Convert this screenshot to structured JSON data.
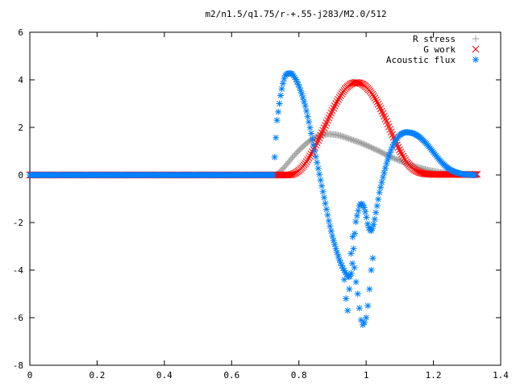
{
  "chart_data": {
    "type": "scatter",
    "title": "m2/n1.5/q1.75/r-+.55-j283/M2.0/512",
    "xlabel": "",
    "ylabel": "",
    "xlim": [
      0,
      1.4
    ],
    "ylim": [
      -8,
      6
    ],
    "x_ticks": [
      "0",
      "0.2",
      "0.4",
      "0.6",
      "0.8",
      "1",
      "1.2",
      "1.4"
    ],
    "y_ticks": [
      "-8",
      "-6",
      "-4",
      "-2",
      "0",
      "2",
      "4",
      "6"
    ],
    "grid": false,
    "legend_position": "top-right",
    "series": [
      {
        "name": "R stress",
        "marker": "plus",
        "color": "#a0a0a0",
        "x": [
          0.0,
          0.05,
          0.1,
          0.15,
          0.2,
          0.25,
          0.3,
          0.35,
          0.4,
          0.45,
          0.5,
          0.55,
          0.6,
          0.65,
          0.7,
          0.73,
          0.74,
          0.75,
          0.76,
          0.77,
          0.78,
          0.79,
          0.8,
          0.81,
          0.82,
          0.83,
          0.84,
          0.85,
          0.86,
          0.87,
          0.88,
          0.89,
          0.9,
          0.91,
          0.92,
          0.93,
          0.94,
          0.95,
          0.96,
          0.97,
          0.98,
          0.99,
          1.0,
          1.01,
          1.02,
          1.03,
          1.04,
          1.05,
          1.06,
          1.07,
          1.08,
          1.09,
          1.1,
          1.11,
          1.12,
          1.13,
          1.14,
          1.15,
          1.16,
          1.17,
          1.18,
          1.19,
          1.2,
          1.21,
          1.22,
          1.23,
          1.24,
          1.25,
          1.26,
          1.27,
          1.28,
          1.29,
          1.3,
          1.31,
          1.32,
          1.33
        ],
        "y": [
          0,
          0,
          0,
          0,
          0,
          0,
          0,
          0,
          0,
          0,
          0,
          0,
          0,
          0,
          0,
          0,
          0.08,
          0.22,
          0.38,
          0.55,
          0.72,
          0.88,
          1.03,
          1.17,
          1.3,
          1.41,
          1.51,
          1.59,
          1.65,
          1.69,
          1.71,
          1.72,
          1.71,
          1.69,
          1.66,
          1.62,
          1.57,
          1.52,
          1.47,
          1.42,
          1.37,
          1.31,
          1.25,
          1.19,
          1.12,
          1.06,
          0.99,
          0.92,
          0.85,
          0.78,
          0.72,
          0.66,
          0.6,
          0.54,
          0.48,
          0.43,
          0.38,
          0.34,
          0.3,
          0.26,
          0.22,
          0.19,
          0.16,
          0.13,
          0.11,
          0.09,
          0.07,
          0.05,
          0.04,
          0.03,
          0.02,
          0.02,
          0.01,
          0.01,
          0.0,
          0.0
        ]
      },
      {
        "name": "G work",
        "marker": "cross",
        "color": "#ff0000",
        "x": [
          0.0,
          0.05,
          0.1,
          0.15,
          0.2,
          0.25,
          0.3,
          0.35,
          0.4,
          0.45,
          0.5,
          0.55,
          0.6,
          0.65,
          0.7,
          0.73,
          0.74,
          0.75,
          0.76,
          0.77,
          0.78,
          0.79,
          0.8,
          0.81,
          0.82,
          0.83,
          0.84,
          0.85,
          0.86,
          0.87,
          0.88,
          0.89,
          0.9,
          0.91,
          0.92,
          0.93,
          0.94,
          0.95,
          0.96,
          0.97,
          0.98,
          0.99,
          1.0,
          1.01,
          1.02,
          1.03,
          1.04,
          1.05,
          1.06,
          1.07,
          1.08,
          1.09,
          1.1,
          1.11,
          1.12,
          1.13,
          1.14,
          1.15,
          1.16,
          1.17,
          1.18,
          1.19,
          1.2,
          1.21,
          1.22,
          1.23,
          1.24,
          1.25,
          1.26,
          1.27,
          1.28,
          1.29,
          1.3,
          1.31,
          1.32,
          1.33
        ],
        "y": [
          0,
          0,
          0,
          0,
          0,
          0,
          0,
          0,
          0,
          0,
          0,
          0,
          0,
          0,
          0,
          0,
          0,
          0,
          0,
          0,
          0.02,
          0.08,
          0.18,
          0.32,
          0.5,
          0.72,
          0.97,
          1.24,
          1.53,
          1.83,
          2.13,
          2.43,
          2.72,
          3.0,
          3.25,
          3.47,
          3.65,
          3.78,
          3.86,
          3.89,
          3.87,
          3.81,
          3.7,
          3.55,
          3.36,
          3.13,
          2.87,
          2.58,
          2.27,
          1.95,
          1.63,
          1.32,
          1.03,
          0.77,
          0.55,
          0.38,
          0.25,
          0.16,
          0.1,
          0.06,
          0.04,
          0.03,
          0.02,
          0.02,
          0.02,
          0.02,
          0.02,
          0.02,
          0.02,
          0.02,
          0.02,
          0.02,
          0.02,
          0.02,
          0.02,
          0.02
        ]
      },
      {
        "name": "Acoustic flux",
        "marker": "star",
        "color": "#0080ff",
        "x": [
          0.0,
          0.05,
          0.1,
          0.15,
          0.2,
          0.25,
          0.3,
          0.35,
          0.4,
          0.45,
          0.5,
          0.55,
          0.6,
          0.65,
          0.7,
          0.725,
          0.73,
          0.735,
          0.74,
          0.745,
          0.75,
          0.755,
          0.76,
          0.765,
          0.77,
          0.775,
          0.78,
          0.79,
          0.8,
          0.81,
          0.82,
          0.83,
          0.84,
          0.85,
          0.86,
          0.87,
          0.88,
          0.89,
          0.9,
          0.91,
          0.92,
          0.93,
          0.94,
          0.945,
          0.95,
          0.955,
          0.96,
          0.965,
          0.97,
          0.975,
          0.98,
          0.985,
          0.99,
          0.995,
          1.0,
          1.005,
          1.01,
          1.015,
          1.02,
          1.025,
          1.03,
          1.035,
          1.04,
          1.05,
          1.06,
          1.07,
          1.08,
          1.09,
          1.1,
          1.11,
          1.12,
          1.13,
          1.14,
          1.15,
          1.16,
          1.17,
          1.18,
          1.19,
          1.2,
          1.21,
          1.22,
          1.23,
          1.24,
          1.25,
          1.26,
          1.27,
          1.28,
          1.29,
          1.3,
          1.31,
          1.32,
          1.325
        ],
        "y": [
          0,
          0,
          0,
          0,
          0,
          0,
          0,
          0,
          0,
          0,
          0,
          0,
          0,
          0,
          0,
          0,
          1.25,
          2.3,
          2.8,
          3.3,
          3.7,
          4.0,
          4.2,
          4.25,
          4.27,
          4.27,
          4.25,
          4.05,
          3.75,
          3.35,
          2.85,
          2.2,
          1.5,
          0.8,
          0.1,
          -0.6,
          -1.3,
          -2.0,
          -2.6,
          -3.1,
          -3.55,
          -3.9,
          -4.15,
          -4.25,
          -4.3,
          -4.2,
          -3.6,
          -2.6,
          -1.9,
          -1.6,
          -1.3,
          -1.2,
          -1.25,
          -1.4,
          -1.7,
          -2.1,
          -2.3,
          -2.35,
          -2.2,
          -1.9,
          -1.5,
          -1.1,
          -0.7,
          -0.1,
          0.45,
          0.9,
          1.25,
          1.5,
          1.68,
          1.77,
          1.8,
          1.78,
          1.75,
          1.68,
          1.58,
          1.45,
          1.3,
          1.13,
          0.95,
          0.77,
          0.6,
          0.45,
          0.32,
          0.22,
          0.15,
          0.1,
          0.06,
          0.03,
          0.02,
          0.01,
          0.0,
          0.0
        ]
      },
      {
        "name": "",
        "marker": "star",
        "color": "#0080ff",
        "x": [
          0.935,
          0.94,
          0.945,
          0.95,
          0.955,
          0.96,
          0.965,
          0.97,
          0.975,
          0.98,
          0.985,
          0.99,
          0.995,
          1.0,
          1.005,
          1.01,
          1.015,
          1.02
        ],
        "y": [
          -4.4,
          -5.2,
          -5.7,
          -4.8,
          -3.3,
          -2.6,
          -3.9,
          -4.5,
          -5.0,
          -5.6,
          -6.1,
          -6.3,
          -6.2,
          -6.0,
          -5.5,
          -4.8,
          -4.0,
          -3.5
        ]
      }
    ]
  }
}
